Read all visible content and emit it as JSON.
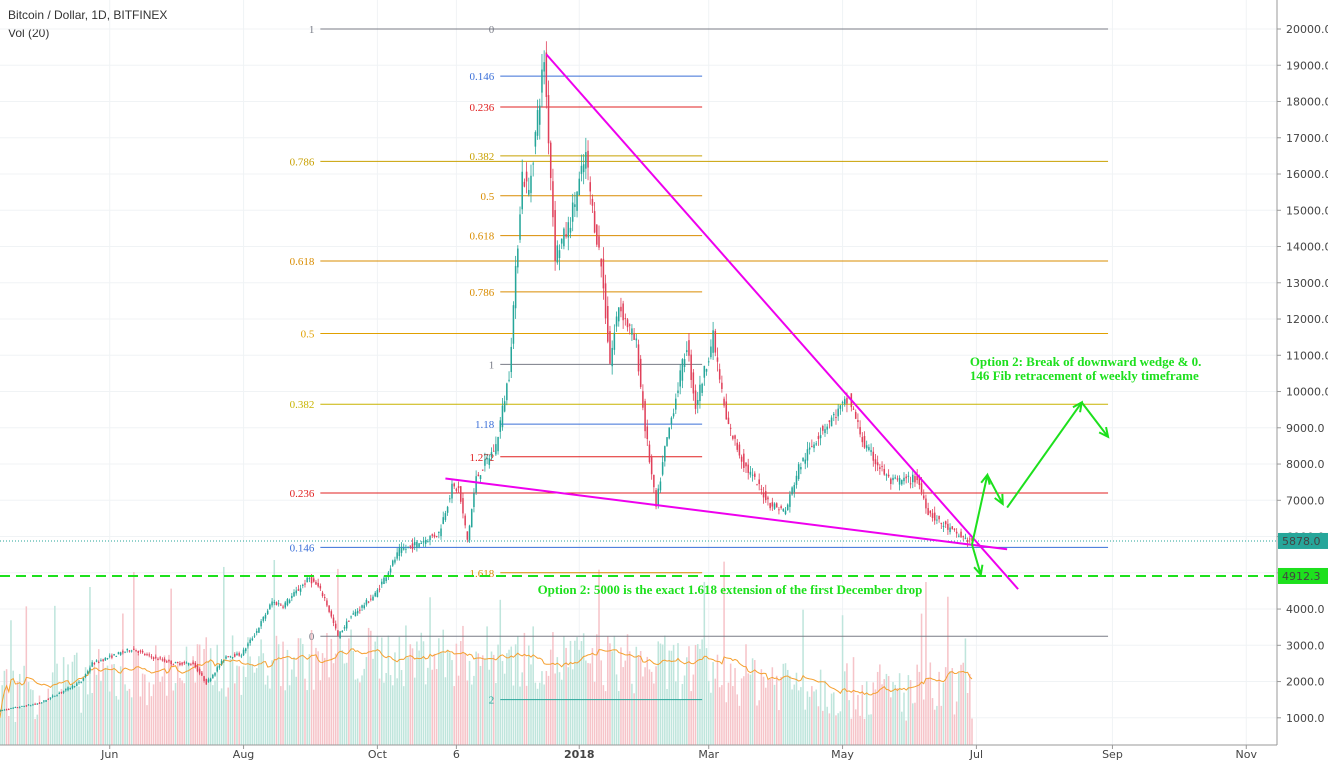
{
  "header": {
    "title": "Bitcoin / Dollar, 1D, BITFINEX",
    "volume_label": "Vol (20)"
  },
  "chart_data": {
    "type": "candlestick",
    "title": "Bitcoin / Dollar, 1D, BITFINEX",
    "y_ticks": [
      1000,
      2000,
      3000,
      4000,
      5000,
      6000,
      7000,
      8000,
      9000,
      10000,
      11000,
      12000,
      13000,
      14000,
      15000,
      16000,
      17000,
      18000,
      19000,
      20000
    ],
    "y_tick_labels": [
      "1000.0",
      "2000.0",
      "3000.0",
      "4000.0",
      "5000.0",
      "6000.0",
      "7000.0",
      "8000.0",
      "9000.0",
      "10000.0",
      "11000.0",
      "12000.0",
      "13000.0",
      "14000.0",
      "15000.0",
      "16000.0",
      "17000.0",
      "18000.0",
      "19000.0",
      "20000.0"
    ],
    "ylim": [
      250,
      20800
    ],
    "x_tick_labels": [
      {
        "label": "Jun",
        "date": "2017-06-01"
      },
      {
        "label": "Aug",
        "date": "2017-08-01"
      },
      {
        "label": "Oct",
        "date": "2017-10-01"
      },
      {
        "label": "6",
        "date": "2017-11-06"
      },
      {
        "label": "2018",
        "date": "2018-01-01"
      },
      {
        "label": "Mar",
        "date": "2018-03-01"
      },
      {
        "label": "May",
        "date": "2018-05-01"
      },
      {
        "label": "Jul",
        "date": "2018-07-01"
      },
      {
        "label": "Sep",
        "date": "2018-09-01"
      },
      {
        "label": "Nov",
        "date": "2018-11-01"
      }
    ],
    "xlim": [
      "2017-04-12",
      "2018-11-15"
    ],
    "price_path": [
      [
        "2017-04-12",
        1190
      ],
      [
        "2017-05-01",
        1400
      ],
      [
        "2017-05-20",
        2000
      ],
      [
        "2017-05-25",
        2500
      ],
      [
        "2017-06-12",
        2900
      ],
      [
        "2017-06-20",
        2700
      ],
      [
        "2017-07-01",
        2500
      ],
      [
        "2017-07-10",
        2500
      ],
      [
        "2017-07-16",
        1950
      ],
      [
        "2017-07-25",
        2700
      ],
      [
        "2017-08-01",
        2750
      ],
      [
        "2017-08-08",
        3400
      ],
      [
        "2017-08-15",
        4200
      ],
      [
        "2017-08-20",
        4100
      ],
      [
        "2017-09-01",
        4850
      ],
      [
        "2017-09-05",
        4600
      ],
      [
        "2017-09-08",
        4300
      ],
      [
        "2017-09-14",
        3250
      ],
      [
        "2017-09-20",
        3800
      ],
      [
        "2017-10-01",
        4400
      ],
      [
        "2017-10-12",
        5600
      ],
      [
        "2017-10-20",
        5800
      ],
      [
        "2017-10-30",
        6100
      ],
      [
        "2017-11-05",
        7350
      ],
      [
        "2017-11-08",
        7300
      ],
      [
        "2017-11-12",
        5900
      ],
      [
        "2017-11-16",
        7600
      ],
      [
        "2017-11-25",
        8500
      ],
      [
        "2017-12-01",
        10500
      ],
      [
        "2017-12-07",
        16000
      ],
      [
        "2017-12-10",
        15500
      ],
      [
        "2017-12-17",
        19200
      ],
      [
        "2017-12-22",
        13800
      ],
      [
        "2017-12-28",
        14500
      ],
      [
        "2018-01-05",
        16500
      ],
      [
        "2018-01-08",
        15000
      ],
      [
        "2018-01-12",
        13500
      ],
      [
        "2018-01-16",
        10800
      ],
      [
        "2018-01-20",
        12400
      ],
      [
        "2018-01-28",
        11300
      ],
      [
        "2018-02-01",
        9000
      ],
      [
        "2018-02-06",
        6800
      ],
      [
        "2018-02-10",
        8400
      ],
      [
        "2018-02-20",
        11300
      ],
      [
        "2018-02-24",
        9600
      ],
      [
        "2018-03-04",
        11500
      ],
      [
        "2018-03-10",
        9200
      ],
      [
        "2018-03-18",
        8000
      ],
      [
        "2018-03-30",
        6900
      ],
      [
        "2018-04-06",
        6700
      ],
      [
        "2018-04-12",
        7900
      ],
      [
        "2018-04-22",
        8900
      ],
      [
        "2018-05-05",
        9800
      ],
      [
        "2018-05-12",
        8500
      ],
      [
        "2018-05-24",
        7500
      ],
      [
        "2018-06-05",
        7600
      ],
      [
        "2018-06-10",
        6700
      ],
      [
        "2018-06-15",
        6400
      ],
      [
        "2018-06-22",
        6100
      ],
      [
        "2018-06-29",
        5878
      ]
    ],
    "current_price": {
      "value": 5878,
      "label": "5878.0",
      "color": "#26a69a"
    },
    "target_line": {
      "value": 4912.3,
      "label": "4912.3",
      "color": "#1de01d"
    },
    "fib_weekly": {
      "start": "2017-09-05",
      "end": "2018-08-30",
      "levels": [
        {
          "label": "1",
          "price": 20000,
          "color": "#787b86"
        },
        {
          "label": "0.786",
          "price": 16350,
          "color": "#c8a000"
        },
        {
          "label": "0.618",
          "price": 13600,
          "color": "#d98c00"
        },
        {
          "label": "0.5",
          "price": 11600,
          "color": "#e0a000"
        },
        {
          "label": "0.382",
          "price": 9650,
          "color": "#c8b400"
        },
        {
          "label": "0.236",
          "price": 7200,
          "color": "#e02020"
        },
        {
          "label": "0.146",
          "price": 5700,
          "color": "#3a6fd8"
        },
        {
          "label": "0",
          "price": 3250,
          "color": "#787b86"
        }
      ]
    },
    "fib_december": {
      "start": "2017-11-26",
      "end": "2018-02-26",
      "levels": [
        {
          "label": "0",
          "price": 20000,
          "color": "#787b86"
        },
        {
          "label": "0.146",
          "price": 18700,
          "color": "#3a6fd8"
        },
        {
          "label": "0.236",
          "price": 17850,
          "color": "#e02020"
        },
        {
          "label": "0.382",
          "price": 16500,
          "color": "#c8a000"
        },
        {
          "label": "0.5",
          "price": 15400,
          "color": "#d98c00"
        },
        {
          "label": "0.618",
          "price": 14300,
          "color": "#d98c00"
        },
        {
          "label": "0.786",
          "price": 12750,
          "color": "#d98c00"
        },
        {
          "label": "1",
          "price": 10750,
          "color": "#787b86"
        },
        {
          "label": "1.18",
          "price": 9100,
          "color": "#3a6fd8"
        },
        {
          "label": "1.272",
          "price": 8200,
          "color": "#e02020"
        },
        {
          "label": "1.618",
          "price": 5000,
          "color": "#d98c00"
        },
        {
          "label": "2",
          "price": 1500,
          "color": "#26a69a"
        }
      ]
    },
    "trendlines": [
      {
        "from": [
          "2017-12-17",
          19300
        ],
        "to": [
          "2018-07-20",
          4550
        ],
        "color": "#ee00ee"
      },
      {
        "from": [
          "2017-11-01",
          7600
        ],
        "to": [
          "2018-07-15",
          5650
        ],
        "color": "#ee00ee"
      }
    ],
    "arrows": [
      {
        "from": [
          "2018-06-29",
          5780
        ],
        "to": [
          "2018-07-06",
          7700
        ]
      },
      {
        "from": [
          "2018-07-06",
          7700
        ],
        "to": [
          "2018-07-13",
          6900
        ]
      },
      {
        "from": [
          "2018-07-15",
          6800
        ],
        "to": [
          "2018-08-18",
          9700
        ]
      },
      {
        "from": [
          "2018-08-18",
          9700
        ],
        "to": [
          "2018-08-30",
          8750
        ]
      },
      {
        "from": [
          "2018-06-29",
          5780
        ],
        "to": [
          "2018-07-03",
          4950
        ]
      }
    ],
    "annotations": [
      {
        "lines": [
          "Option 2: Break of downward wedge & 0.",
          "146 Fib retracement of weekly timeframe"
        ],
        "at": [
          "2018-06-28",
          10700
        ]
      },
      {
        "lines": [
          "Option 2: 5000 is the exact 1.618 extension of the first December drop"
        ],
        "at": [
          "2017-12-13",
          4420
        ]
      }
    ],
    "up_color": "#26a69a",
    "down_color": "#e0405a",
    "volume_color_up": "#bfe5dc",
    "volume_color_down": "#f6c4c9",
    "volume_ma_color": "#f5a030",
    "grid": true
  }
}
